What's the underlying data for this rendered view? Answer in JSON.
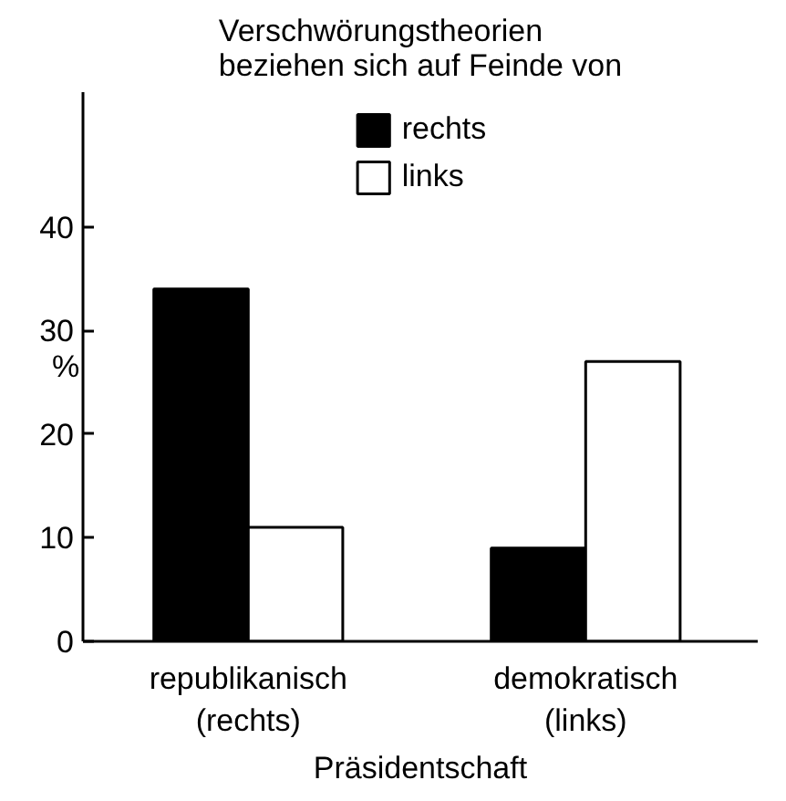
{
  "chart_data": {
    "type": "bar",
    "title": "Verschwörungstheorien\nbeziehen sich auf Feinde von",
    "categories": [
      "republikanisch\n(rechts)",
      "demokratisch\n(links)"
    ],
    "series": [
      {
        "name": "rechts",
        "color": "#000000",
        "values": [
          34,
          9
        ]
      },
      {
        "name": "links",
        "color": "#ffffff",
        "values": [
          11,
          27
        ]
      }
    ],
    "xlabel": "Präsidentschaft",
    "ylabel": "%",
    "ylim": [
      0,
      53
    ],
    "yticks": [
      0,
      10,
      20,
      30,
      40
    ],
    "grid": false,
    "legend": "top"
  }
}
